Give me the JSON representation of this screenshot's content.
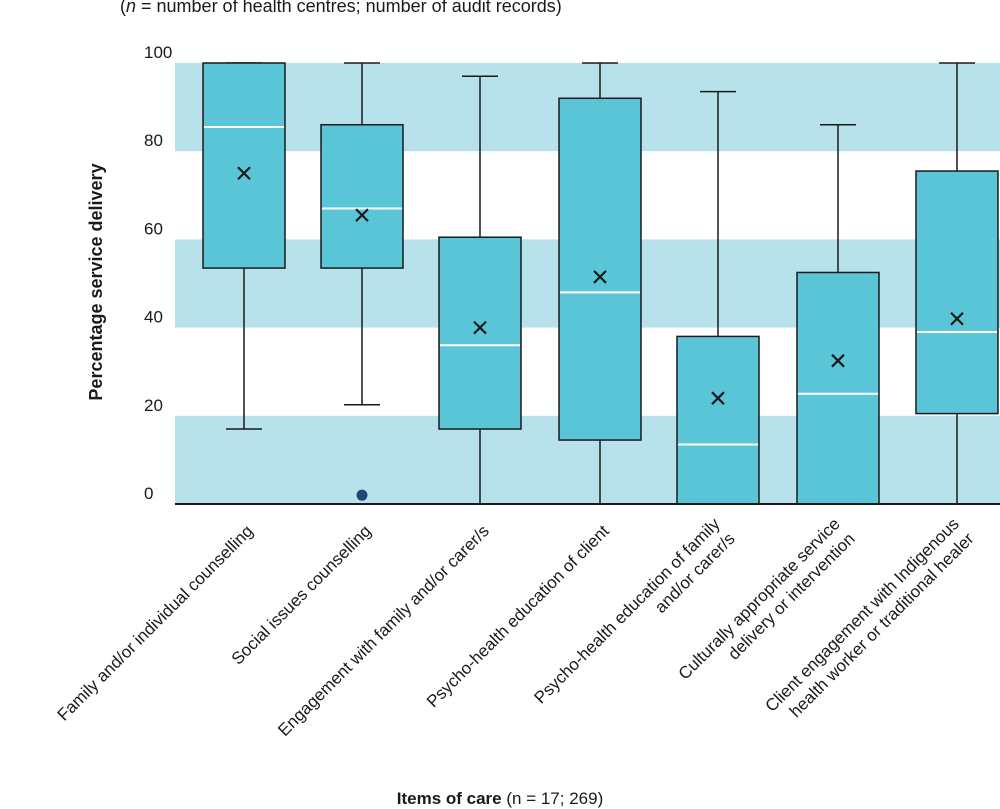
{
  "chart_data": {
    "type": "box",
    "subtitle_prefix": "n",
    "subtitle_rest": " = number of health centres; number of audit records)",
    "subtitle_open": "(",
    "ylabel": "Percentage service delivery",
    "xlabel_bold": "Items of care",
    "xlabel_rest": " (n = 17; 269)",
    "ylim": [
      0,
      100
    ],
    "yticks": [
      0,
      20,
      40,
      60,
      80,
      100
    ],
    "colors": {
      "box": "#5bc5d8",
      "band": "#b7e2ec",
      "outlier": "#1e4a72",
      "line": "#1a1a1a"
    },
    "categories": [
      [
        "Family and/or individual counselling"
      ],
      [
        "Social issues counselling"
      ],
      [
        "Engagement with family and/or carer/s"
      ],
      [
        "Psycho-health education of client"
      ],
      [
        "Psycho-health education of family",
        "and/or carer/s"
      ],
      [
        "Culturally appropriate service",
        "delivery or intervention"
      ],
      [
        "Client engagement with Indigenous",
        "health worker or traditional healer"
      ]
    ],
    "boxes": [
      {
        "min": 17,
        "q1": 53.5,
        "median": 85.5,
        "q3": 100,
        "max": 100,
        "mean": 75,
        "outliers": []
      },
      {
        "min": 22.5,
        "q1": 53.5,
        "median": 67,
        "q3": 86,
        "max": 100,
        "mean": 65.5,
        "outliers": [
          2
        ]
      },
      {
        "min": 0,
        "q1": 17,
        "median": 36,
        "q3": 60.5,
        "max": 97,
        "mean": 40,
        "outliers": []
      },
      {
        "min": 0,
        "q1": 14.5,
        "median": 48,
        "q3": 92,
        "max": 100,
        "mean": 51.5,
        "outliers": []
      },
      {
        "min": 0,
        "q1": 0,
        "median": 13.5,
        "q3": 38,
        "max": 93.5,
        "mean": 24,
        "outliers": []
      },
      {
        "min": 0,
        "q1": 0,
        "median": 25,
        "q3": 52.5,
        "max": 86,
        "mean": 32.5,
        "outliers": []
      },
      {
        "min": 0,
        "q1": 20.5,
        "median": 39,
        "q3": 75.5,
        "max": 100,
        "mean": 42,
        "outliers": []
      }
    ]
  }
}
